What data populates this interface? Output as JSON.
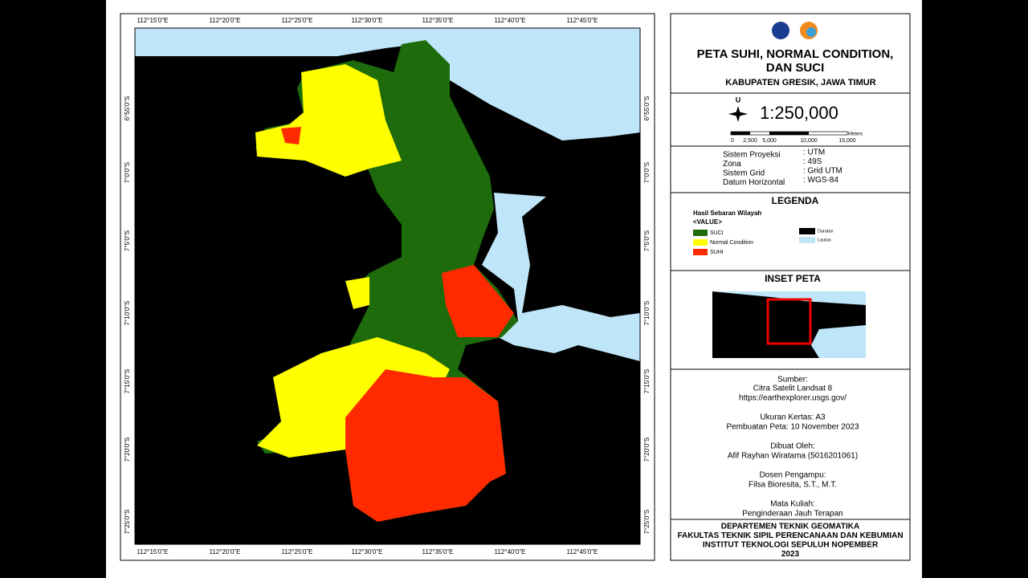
{
  "map": {
    "lon_labels": [
      "112°15'0\"E",
      "112°20'0\"E",
      "112°25'0\"E",
      "112°30'0\"E",
      "112°35'0\"E",
      "112°40'0\"E",
      "112°45'0\"E"
    ],
    "lat_labels": [
      "6°55'0\"S",
      "7°0'0\"S",
      "7°5'0\"S",
      "7°10'0\"S",
      "7°15'0\"S",
      "7°20'0\"S",
      "7°25'0\"S"
    ]
  },
  "panel": {
    "title": [
      "PETA SUHI, NORMAL CONDITION,",
      "DAN SUCI"
    ],
    "subtitle": "KABUPATEN GRESIK, JAWA TIMUR",
    "north": "U",
    "scale": "1:250,000",
    "scale_bar": {
      "labels": [
        "0",
        "2,500",
        "5,000",
        "10,000",
        "15,000"
      ],
      "unit": "Meters"
    },
    "info": [
      {
        "key": "Sistem Proyeksi",
        "value": ": UTM"
      },
      {
        "key": "Zona",
        "value": ": 49S"
      },
      {
        "key": "Sistem Grid",
        "value": ": Grid UTM"
      },
      {
        "key": "Datum Horizontal",
        "value": ": WGS-84"
      }
    ],
    "legend": {
      "title": "LEGENDA",
      "heading": "Hasil Sebaran Wilayah",
      "field": "<VALUE>",
      "items": [
        {
          "label": "SUCI",
          "color": "#1e6b0c"
        },
        {
          "label": "Normal Condition",
          "color": "#ffff00"
        },
        {
          "label": "SUHI",
          "color": "#ff2a00"
        },
        {
          "label": "Daratan",
          "color": "#000000"
        },
        {
          "label": "Lautan",
          "color": "#bfe6f8"
        }
      ]
    },
    "inset_title": "INSET PETA",
    "notes": [
      "Sumber:",
      "Citra Satelit Landsat 8",
      "https://earthexplorer.usgs.gov/",
      "Ukuran Kertas: A3",
      "Pembuatan Peta: 10 November 2023",
      "Dibuat Oleh:",
      "Afif Rayhan Wiratama (5016201061)",
      "Dosen Pengampu:",
      "Filsa Bioresita, S.T., M.T.",
      "Mata Kuliah:",
      "Penginderaan Jauh Terapan"
    ],
    "footer": [
      "DEPARTEMEN TEKNIK GEOMATIKA",
      "FAKULTAS TEKNIK SIPIL PERENCANAAN DAN KEBUMIAN",
      "INSTITUT TEKNOLOGI SEPULUH NOPEMBER",
      "2023"
    ]
  }
}
